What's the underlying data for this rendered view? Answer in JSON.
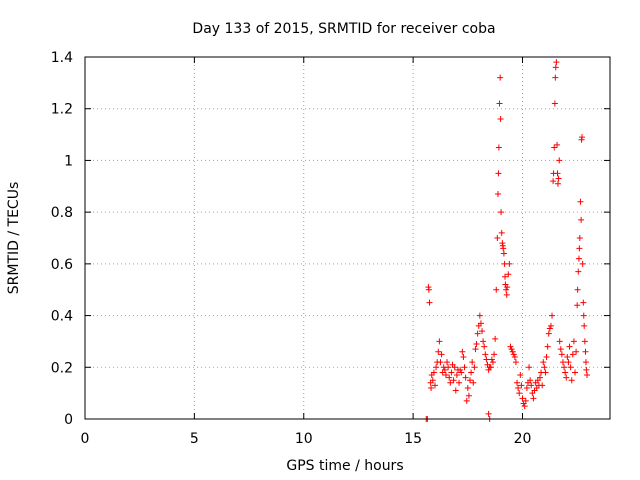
{
  "chart_data": {
    "type": "scatter",
    "title": "Day 133 of 2015, SRMTID for receiver coba",
    "xlabel": "GPS time / hours",
    "ylabel": "SRMTID / TECUs",
    "xlim": [
      0,
      24
    ],
    "ylim": [
      0,
      1.4
    ],
    "xticks": [
      0,
      5,
      10,
      15,
      20
    ],
    "yticks": [
      0,
      0.2,
      0.4,
      0.6,
      0.8,
      1,
      1.2,
      1.4
    ],
    "grid": true,
    "marker": "+",
    "colors": {
      "series": "#ff0000",
      "grid": "#a0a0a0",
      "axes": "#000000"
    },
    "series": [
      {
        "x": [
          15.7,
          15.72,
          15.75,
          15.8,
          15.82,
          15.85,
          15.9,
          15.95,
          16.0,
          16.05,
          16.1,
          16.15,
          16.2,
          16.25,
          16.3,
          16.35,
          16.4,
          16.45,
          16.5,
          16.55,
          16.6,
          16.65,
          16.7,
          16.75,
          16.8,
          16.85,
          16.9,
          16.95,
          17.0,
          17.05,
          17.1,
          17.15,
          17.2,
          17.25,
          17.3,
          17.35,
          17.4,
          17.45,
          17.5,
          17.55,
          17.6,
          17.65,
          17.7,
          17.75,
          17.8,
          17.85,
          17.9,
          17.95,
          18.0,
          18.05,
          18.1,
          18.15,
          18.2,
          18.25,
          18.3,
          18.35,
          18.4,
          18.45,
          18.5,
          18.55,
          18.6,
          18.65,
          18.7,
          18.75,
          18.8,
          18.85,
          18.88,
          18.9,
          18.92,
          18.95,
          18.98,
          19.0,
          19.02,
          19.05,
          19.08,
          19.1,
          19.12,
          19.15,
          19.18,
          19.2,
          19.22,
          19.25,
          19.28,
          19.3,
          19.35,
          19.4,
          19.45,
          19.5,
          19.55,
          19.6,
          19.65,
          19.7,
          19.75,
          19.8,
          19.85,
          19.9,
          19.95,
          20.0,
          20.05,
          20.1,
          20.15,
          20.2,
          20.25,
          20.3,
          20.35,
          20.4,
          20.45,
          20.5,
          20.55,
          20.6,
          20.65,
          20.7,
          20.75,
          20.8,
          20.85,
          20.9,
          20.95,
          21.0,
          21.05,
          21.1,
          21.15,
          21.2,
          21.25,
          21.3,
          21.35,
          21.4,
          21.42,
          21.45,
          21.48,
          21.5,
          21.52,
          21.55,
          21.58,
          21.6,
          21.62,
          21.65,
          21.68,
          21.7,
          21.75,
          21.8,
          21.85,
          21.9,
          21.95,
          22.0,
          22.05,
          22.1,
          22.15,
          22.2,
          22.25,
          22.3,
          22.35,
          22.4,
          22.45,
          22.5,
          22.52,
          22.55,
          22.58,
          22.6,
          22.62,
          22.65,
          22.68,
          22.7,
          22.72,
          22.75,
          22.78,
          22.8,
          22.82,
          22.85,
          22.88,
          22.9,
          22.92,
          22.95,
          15.6,
          15.65,
          18.45,
          18.5
        ],
        "y": [
          0.51,
          0.5,
          0.45,
          0.14,
          0.12,
          0.17,
          0.15,
          0.18,
          0.13,
          0.2,
          0.22,
          0.26,
          0.3,
          0.22,
          0.25,
          0.18,
          0.2,
          0.19,
          0.17,
          0.22,
          0.2,
          0.16,
          0.14,
          0.18,
          0.21,
          0.15,
          0.2,
          0.11,
          0.17,
          0.19,
          0.14,
          0.19,
          0.18,
          0.26,
          0.24,
          0.2,
          0.16,
          0.07,
          0.12,
          0.09,
          0.15,
          0.18,
          0.22,
          0.14,
          0.2,
          0.27,
          0.29,
          0.33,
          0.36,
          0.4,
          0.37,
          0.34,
          0.3,
          0.28,
          0.25,
          0.23,
          0.21,
          0.19,
          0.2,
          0.2,
          0.23,
          0.22,
          0.25,
          0.31,
          0.5,
          0.7,
          0.87,
          0.95,
          1.05,
          1.22,
          1.32,
          1.16,
          0.8,
          0.72,
          0.68,
          0.67,
          0.66,
          0.64,
          0.6,
          0.55,
          0.52,
          0.5,
          0.48,
          0.51,
          0.56,
          0.6,
          0.28,
          0.27,
          0.26,
          0.25,
          0.24,
          0.22,
          0.14,
          0.12,
          0.1,
          0.17,
          0.13,
          0.08,
          0.06,
          0.05,
          0.07,
          0.12,
          0.14,
          0.2,
          0.15,
          0.13,
          0.1,
          0.08,
          0.11,
          0.14,
          0.12,
          0.15,
          0.13,
          0.16,
          0.18,
          0.13,
          0.22,
          0.2,
          0.18,
          0.24,
          0.28,
          0.33,
          0.35,
          0.36,
          0.4,
          0.92,
          0.95,
          1.05,
          1.22,
          1.32,
          1.36,
          1.38,
          1.06,
          0.95,
          0.91,
          0.93,
          1.0,
          0.3,
          0.27,
          0.25,
          0.22,
          0.2,
          0.18,
          0.16,
          0.24,
          0.22,
          0.28,
          0.2,
          0.15,
          0.25,
          0.3,
          0.18,
          0.26,
          0.44,
          0.5,
          0.57,
          0.62,
          0.66,
          0.7,
          0.84,
          0.77,
          1.08,
          1.09,
          0.6,
          0.45,
          0.4,
          0.36,
          0.3,
          0.26,
          0.22,
          0.19,
          0.17,
          0.0,
          0.0,
          0.02,
          0.0
        ]
      }
    ]
  }
}
